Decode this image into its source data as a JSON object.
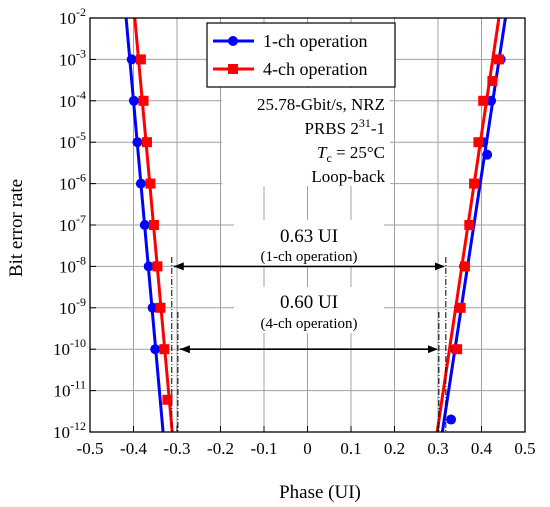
{
  "chart_data": {
    "type": "scatter",
    "xlabel": "Phase (UI)",
    "ylabel": "Bit error rate",
    "xlim": [
      -0.5,
      0.5
    ],
    "ylim_log10": [
      -12,
      -2
    ],
    "y_scale": "log",
    "grid": true,
    "x_ticks": [
      "-0.5",
      "-0.4",
      "-0.3",
      "-0.2",
      "-0.1",
      "0",
      "0.1",
      "0.2",
      "0.3",
      "0.4",
      "0.5"
    ],
    "y_ticks": [
      {
        "base": "10",
        "exp": "-2"
      },
      {
        "base": "10",
        "exp": "-3"
      },
      {
        "base": "10",
        "exp": "-4"
      },
      {
        "base": "10",
        "exp": "-5"
      },
      {
        "base": "10",
        "exp": "-6"
      },
      {
        "base": "10",
        "exp": "-7"
      },
      {
        "base": "10",
        "exp": "-8"
      },
      {
        "base": "10",
        "exp": "-9"
      },
      {
        "base": "10",
        "exp": "-10"
      },
      {
        "base": "10",
        "exp": "-11"
      },
      {
        "base": "10",
        "exp": "-12"
      }
    ],
    "legend": {
      "placement": "top-center"
    },
    "series": [
      {
        "name": "1-ch operation",
        "color": "#0000ff",
        "marker": "circle",
        "left_points": [
          {
            "x": -0.404,
            "ber": 0.001
          },
          {
            "x": -0.399,
            "ber": 0.0001
          },
          {
            "x": -0.391,
            "ber": 1e-05
          },
          {
            "x": -0.383,
            "ber": 1e-06
          },
          {
            "x": -0.374,
            "ber": 1e-07
          },
          {
            "x": -0.365,
            "ber": 1e-08
          },
          {
            "x": -0.356,
            "ber": 1e-09
          },
          {
            "x": -0.35,
            "ber": 1e-10
          }
        ],
        "right_points": [
          {
            "x": 0.33,
            "ber": 2e-12
          },
          {
            "x": 0.339,
            "ber": 1e-10
          },
          {
            "x": 0.348,
            "ber": 1e-09
          },
          {
            "x": 0.36,
            "ber": 1e-08
          },
          {
            "x": 0.372,
            "ber": 1e-07
          },
          {
            "x": 0.383,
            "ber": 1e-06
          },
          {
            "x": 0.404,
            "ber": 1e-05
          },
          {
            "x": 0.413,
            "ber": 5e-06
          },
          {
            "x": 0.422,
            "ber": 0.0001
          },
          {
            "x": 0.444,
            "ber": 0.001
          }
        ],
        "left_line": [
          {
            "x": -0.417,
            "ber": 0.01
          },
          {
            "x": -0.332,
            "ber": 1e-12
          }
        ],
        "right_line": [
          {
            "x": 0.31,
            "ber": 1e-12
          },
          {
            "x": 0.455,
            "ber": 0.01
          }
        ]
      },
      {
        "name": "4-ch operation",
        "color": "#ff0000",
        "marker": "square",
        "left_points": [
          {
            "x": -0.383,
            "ber": 0.001
          },
          {
            "x": -0.377,
            "ber": 0.0001
          },
          {
            "x": -0.369,
            "ber": 1e-05
          },
          {
            "x": -0.361,
            "ber": 1e-06
          },
          {
            "x": -0.353,
            "ber": 1e-07
          },
          {
            "x": -0.345,
            "ber": 1e-08
          },
          {
            "x": -0.338,
            "ber": 1e-09
          },
          {
            "x": -0.329,
            "ber": 1e-10
          },
          {
            "x": -0.322,
            "ber": 6e-12
          }
        ],
        "right_points": [
          {
            "x": 0.344,
            "ber": 1e-10
          },
          {
            "x": 0.352,
            "ber": 1e-09
          },
          {
            "x": 0.362,
            "ber": 1e-08
          },
          {
            "x": 0.372,
            "ber": 1e-07
          },
          {
            "x": 0.383,
            "ber": 1e-06
          },
          {
            "x": 0.393,
            "ber": 1e-05
          },
          {
            "x": 0.404,
            "ber": 0.0001
          },
          {
            "x": 0.425,
            "ber": 0.0003
          },
          {
            "x": 0.44,
            "ber": 0.001
          }
        ],
        "left_line": [
          {
            "x": -0.397,
            "ber": 0.01
          },
          {
            "x": -0.311,
            "ber": 1e-12
          }
        ],
        "right_line": [
          {
            "x": 0.298,
            "ber": 1e-12
          },
          {
            "x": 0.44,
            "ber": 0.01
          }
        ]
      }
    ],
    "annotations": {
      "conditions": [
        {
          "text": "25.78-Gbit/s, NRZ"
        },
        {
          "text": "PRBS 2",
          "sup": "31",
          "tail": "-1"
        },
        {
          "italic": "T",
          "sub": "c",
          "tail": " = 25°C"
        },
        {
          "text": "Loop-back"
        }
      ],
      "arrow_1ch": {
        "value_label": "0.63 UI",
        "note": "(1-ch operation)",
        "from_x": -0.312,
        "to_x": 0.318,
        "ber": 1e-08
      },
      "arrow_4ch": {
        "value_label": "0.60 UI",
        "note": "(4-ch operation)",
        "from_x": -0.298,
        "to_x": 0.302,
        "ber": 1e-10
      }
    }
  }
}
